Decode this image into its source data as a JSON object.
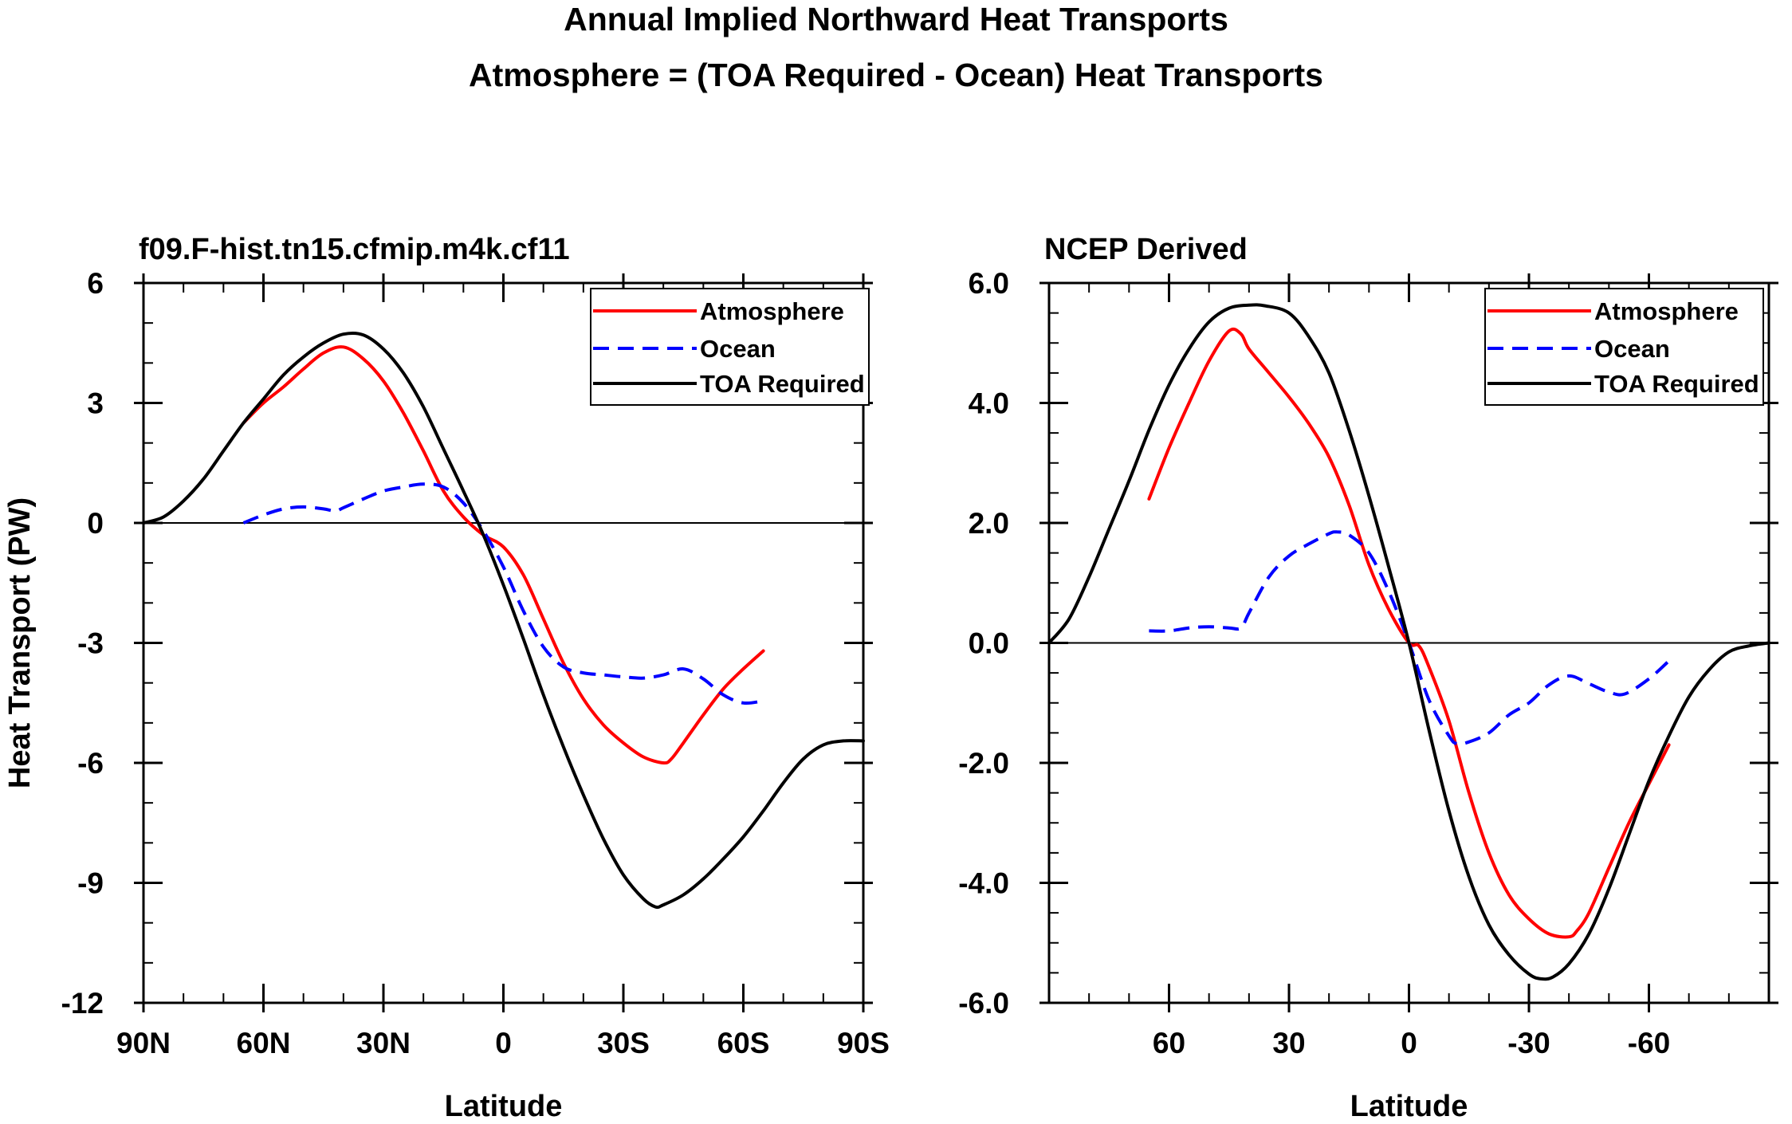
{
  "figure": {
    "title_line1": "Annual Implied Northward Heat Transports",
    "title_line2": "Atmosphere = (TOA Required - Ocean) Heat Transports"
  },
  "chart_data": [
    {
      "type": "line",
      "title": "f09.F-hist.tn15.cfmip.m4k.cf11",
      "xlabel": "Latitude",
      "ylabel": "Heat Transport (PW)",
      "xlim": [
        90,
        -90
      ],
      "ylim": [
        -12,
        6
      ],
      "xticks": [
        {
          "value": 90,
          "label": "90N"
        },
        {
          "value": 60,
          "label": "60N"
        },
        {
          "value": 30,
          "label": "30N"
        },
        {
          "value": 0,
          "label": "0"
        },
        {
          "value": -30,
          "label": "30S"
        },
        {
          "value": -60,
          "label": "60S"
        },
        {
          "value": -90,
          "label": "90S"
        }
      ],
      "yticks": [
        {
          "value": 6,
          "label": "6"
        },
        {
          "value": 3,
          "label": "3"
        },
        {
          "value": 0,
          "label": "0"
        },
        {
          "value": -3,
          "label": "-3"
        },
        {
          "value": -6,
          "label": "-6"
        },
        {
          "value": -9,
          "label": "-9"
        },
        {
          "value": -12,
          "label": "-12"
        }
      ],
      "legend": {
        "position": "top-right",
        "labels": [
          "Atmosphere",
          "Ocean",
          "TOA Required"
        ]
      },
      "series": [
        {
          "name": "Atmosphere",
          "color": "#ff0000",
          "dash": "solid",
          "x": [
            65,
            60,
            55,
            50,
            45,
            40,
            35,
            30,
            25,
            20,
            15,
            10,
            5,
            0,
            -5,
            -10,
            -15,
            -20,
            -25,
            -30,
            -35,
            -40,
            -42,
            -45,
            -50,
            -55,
            -60,
            -65
          ],
          "y": [
            2.5,
            3.0,
            3.4,
            3.85,
            4.25,
            4.4,
            4.1,
            3.55,
            2.75,
            1.8,
            0.8,
            0.15,
            -0.3,
            -0.6,
            -1.3,
            -2.4,
            -3.5,
            -4.4,
            -5.05,
            -5.5,
            -5.85,
            -6.0,
            -5.9,
            -5.5,
            -4.8,
            -4.15,
            -3.65,
            -3.2
          ]
        },
        {
          "name": "Ocean",
          "color": "#0000ff",
          "dash": "dashed",
          "x": [
            65,
            60,
            55,
            50,
            45,
            42,
            40,
            35,
            30,
            25,
            20,
            15,
            10,
            5,
            0,
            -5,
            -10,
            -15,
            -20,
            -25,
            -30,
            -35,
            -40,
            -45,
            -50,
            -55,
            -60,
            -65
          ],
          "y": [
            0.0,
            0.2,
            0.35,
            0.4,
            0.35,
            0.3,
            0.38,
            0.6,
            0.8,
            0.9,
            0.97,
            0.9,
            0.5,
            -0.2,
            -1.1,
            -2.2,
            -3.1,
            -3.6,
            -3.75,
            -3.8,
            -3.85,
            -3.88,
            -3.8,
            -3.65,
            -3.9,
            -4.3,
            -4.5,
            -4.45
          ]
        },
        {
          "name": "TOA Required",
          "color": "#000000",
          "dash": "solid",
          "x": [
            90,
            85,
            80,
            75,
            70,
            65,
            60,
            55,
            50,
            45,
            40,
            35,
            30,
            25,
            20,
            15,
            10,
            5,
            0,
            -5,
            -10,
            -15,
            -20,
            -25,
            -30,
            -35,
            -38,
            -40,
            -45,
            -50,
            -55,
            -60,
            -65,
            -70,
            -75,
            -80,
            -85,
            -90
          ],
          "y": [
            0.0,
            0.15,
            0.55,
            1.1,
            1.8,
            2.5,
            3.1,
            3.7,
            4.15,
            4.5,
            4.72,
            4.7,
            4.35,
            3.75,
            2.9,
            1.85,
            0.8,
            -0.3,
            -1.55,
            -2.9,
            -4.3,
            -5.6,
            -6.8,
            -7.9,
            -8.8,
            -9.4,
            -9.6,
            -9.55,
            -9.3,
            -8.9,
            -8.4,
            -7.85,
            -7.2,
            -6.5,
            -5.9,
            -5.55,
            -5.45,
            -5.45
          ]
        }
      ]
    },
    {
      "type": "line",
      "title": "NCEP Derived",
      "xlabel": "Latitude",
      "ylabel": "",
      "xlim": [
        90,
        -90
      ],
      "ylim": [
        -6.0,
        6.0
      ],
      "xticks": [
        {
          "value": 60,
          "label": "60"
        },
        {
          "value": 30,
          "label": "30"
        },
        {
          "value": 0,
          "label": "0"
        },
        {
          "value": -30,
          "label": "-30"
        },
        {
          "value": -60,
          "label": "-60"
        }
      ],
      "yticks": [
        {
          "value": 6,
          "label": "6.0"
        },
        {
          "value": 4,
          "label": "4.0"
        },
        {
          "value": 2,
          "label": "2.0"
        },
        {
          "value": 0,
          "label": "0.0"
        },
        {
          "value": -2,
          "label": "-2.0"
        },
        {
          "value": -4,
          "label": "-4.0"
        },
        {
          "value": -6,
          "label": "-6.0"
        }
      ],
      "legend": {
        "position": "top-right",
        "labels": [
          "Atmosphere",
          "Ocean",
          "TOA Required"
        ]
      },
      "series": [
        {
          "name": "Atmosphere",
          "color": "#ff0000",
          "dash": "solid",
          "x": [
            65,
            60,
            55,
            50,
            45,
            42,
            40,
            35,
            30,
            25,
            20,
            15,
            10,
            5,
            0,
            -2.5,
            -5,
            -10,
            -15,
            -20,
            -25,
            -30,
            -35,
            -40,
            -42,
            -45,
            -50,
            -55,
            -60,
            -65
          ],
          "y": [
            2.4,
            3.25,
            4.0,
            4.7,
            5.2,
            5.15,
            4.9,
            4.5,
            4.1,
            3.65,
            3.1,
            2.3,
            1.3,
            0.55,
            0.0,
            -0.05,
            -0.4,
            -1.3,
            -2.5,
            -3.5,
            -4.2,
            -4.6,
            -4.85,
            -4.9,
            -4.8,
            -4.5,
            -3.75,
            -3.0,
            -2.35,
            -1.7
          ]
        },
        {
          "name": "Ocean",
          "color": "#0000ff",
          "dash": "dashed",
          "x": [
            65,
            60,
            55,
            50,
            45,
            42,
            40,
            35,
            30,
            25,
            20,
            18,
            15,
            10,
            5,
            0,
            -5,
            -10,
            -12,
            -15,
            -20,
            -25,
            -30,
            -35,
            -40,
            -45,
            -50,
            -54,
            -60,
            -65
          ],
          "y": [
            0.2,
            0.2,
            0.25,
            0.27,
            0.25,
            0.25,
            0.5,
            1.1,
            1.45,
            1.65,
            1.82,
            1.85,
            1.8,
            1.5,
            0.85,
            0.0,
            -0.95,
            -1.55,
            -1.68,
            -1.65,
            -1.5,
            -1.2,
            -1.0,
            -0.7,
            -0.55,
            -0.68,
            -0.82,
            -0.85,
            -0.6,
            -0.3
          ]
        },
        {
          "name": "TOA Required",
          "color": "#000000",
          "dash": "solid",
          "x": [
            90,
            85,
            80,
            75,
            70,
            65,
            60,
            55,
            50,
            45,
            40,
            36,
            30,
            25,
            20,
            15,
            10,
            5,
            0,
            -5,
            -10,
            -15,
            -20,
            -25,
            -30,
            -33,
            -36,
            -40,
            -45,
            -50,
            -55,
            -60,
            -65,
            -70,
            -75,
            -80,
            -85,
            -90
          ],
          "y": [
            0.0,
            0.4,
            1.1,
            1.9,
            2.7,
            3.55,
            4.3,
            4.9,
            5.35,
            5.58,
            5.63,
            5.62,
            5.5,
            5.1,
            4.5,
            3.55,
            2.45,
            1.25,
            0.0,
            -1.45,
            -2.8,
            -3.9,
            -4.7,
            -5.2,
            -5.52,
            -5.6,
            -5.57,
            -5.35,
            -4.85,
            -4.1,
            -3.2,
            -2.3,
            -1.55,
            -0.9,
            -0.45,
            -0.15,
            -0.05,
            0.0
          ]
        }
      ]
    }
  ]
}
